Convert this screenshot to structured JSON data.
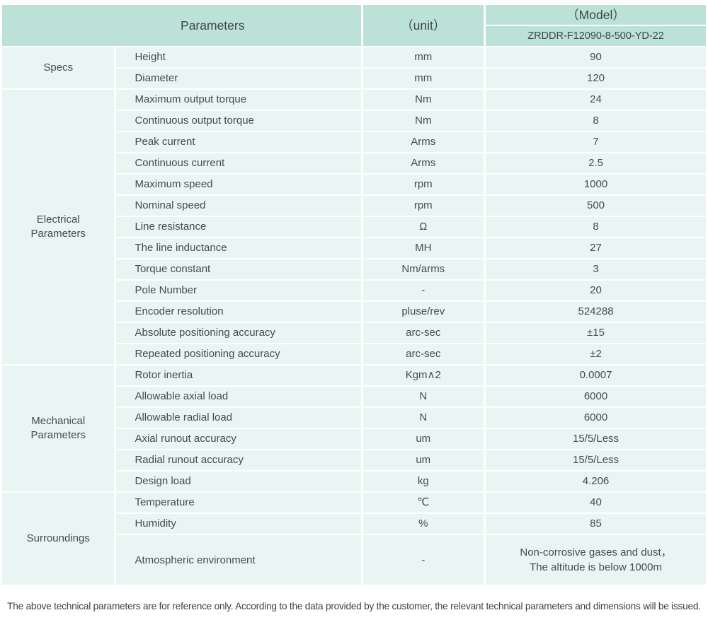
{
  "colors": {
    "header_bg": "#bce2d8",
    "row_bg": "#e8f5f2",
    "text": "#474b4d"
  },
  "table": {
    "header": {
      "parameters_label": "Parameters",
      "unit_label": "（unit）",
      "model_label": "（Model）",
      "model_value": "ZRDDR-F12090-8-500-YD-22"
    },
    "sections": [
      {
        "label": "Specs",
        "rows": [
          {
            "parameter": "Height",
            "unit": "mm",
            "value": "90"
          },
          {
            "parameter": "Diameter",
            "unit": "mm",
            "value": "120"
          }
        ]
      },
      {
        "label": "Electrical\nParameters",
        "rows": [
          {
            "parameter": "Maximum output torque",
            "unit": "Nm",
            "value": "24"
          },
          {
            "parameter": "Continuous output torque",
            "unit": "Nm",
            "value": "8"
          },
          {
            "parameter": "Peak current",
            "unit": "Arms",
            "value": "7"
          },
          {
            "parameter": "Continuous current",
            "unit": "Arms",
            "value": "2.5"
          },
          {
            "parameter": "Maximum speed",
            "unit": "rpm",
            "value": "1000"
          },
          {
            "parameter": "Nominal speed",
            "unit": "rpm",
            "value": "500"
          },
          {
            "parameter": "Line resistance",
            "unit": "Ω",
            "value": "8"
          },
          {
            "parameter": "The line inductance",
            "unit": "MH",
            "value": "27"
          },
          {
            "parameter": "Torque constant",
            "unit": "Nm/arms",
            "value": "3"
          },
          {
            "parameter": "Pole Number",
            "unit": "-",
            "value": "20"
          },
          {
            "parameter": "Encoder resolution",
            "unit": "pluse/rev",
            "value": "524288"
          },
          {
            "parameter": "Absolute positioning accuracy",
            "unit": "arc-sec",
            "value": "±15"
          },
          {
            "parameter": "Repeated positioning accuracy",
            "unit": "arc-sec",
            "value": "±2"
          }
        ]
      },
      {
        "label": "Mechanical\nParameters",
        "rows": [
          {
            "parameter": "Rotor inertia",
            "unit": "Kgm∧2",
            "value": "0.0007"
          },
          {
            "parameter": "Allowable axial load",
            "unit": "N",
            "value": "6000"
          },
          {
            "parameter": "Allowable radial load",
            "unit": "N",
            "value": "6000"
          },
          {
            "parameter": "Axial runout accuracy",
            "unit": "um",
            "value": "15/5/Less"
          },
          {
            "parameter": "Radial runout accuracy",
            "unit": "um",
            "value": "15/5/Less"
          },
          {
            "parameter": "Design load",
            "unit": "kg",
            "value": "4.206"
          }
        ]
      },
      {
        "label": "Surroundings",
        "rows": [
          {
            "parameter": "Temperature",
            "unit": "℃",
            "value": "40"
          },
          {
            "parameter": "Humidity",
            "unit": "%",
            "value": "85"
          },
          {
            "parameter": "Atmospheric environment",
            "unit": "-",
            "value": "Non-corrosive gases and dust，\nThe altitude is below 1000m",
            "tall": true
          }
        ]
      }
    ]
  },
  "footer": {
    "note": "The above technical parameters are for reference only. According to the data provided by the customer, the relevant technical parameters and dimensions will be issued."
  }
}
